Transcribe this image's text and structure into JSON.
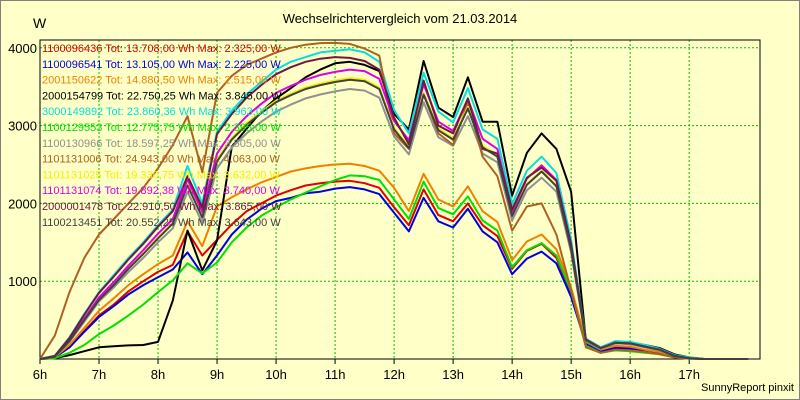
{
  "chart_data": {
    "type": "line",
    "title": "Wechselrichtervergleich vom 21.03.2014",
    "ylabel": "W",
    "credit": "SunnyReport pinxit",
    "ylim": [
      0,
      4100
    ],
    "xlim": [
      6,
      18.2
    ],
    "grid": true,
    "legend_position": "top-left",
    "y_ticks": [
      {
        "value": 1000,
        "label": "1000"
      },
      {
        "value": 2000,
        "label": "2000"
      },
      {
        "value": 3000,
        "label": "3000"
      },
      {
        "value": 4000,
        "label": "4000"
      }
    ],
    "x_ticks": [
      {
        "value": 6,
        "label": "6h"
      },
      {
        "value": 7,
        "label": "7h"
      },
      {
        "value": 8,
        "label": "8h"
      },
      {
        "value": 9,
        "label": "9h"
      },
      {
        "value": 10,
        "label": "10h"
      },
      {
        "value": 11,
        "label": "11h"
      },
      {
        "value": 12,
        "label": "12h"
      },
      {
        "value": 13,
        "label": "13h"
      },
      {
        "value": 14,
        "label": "14h"
      },
      {
        "value": 15,
        "label": "15h"
      },
      {
        "value": 16,
        "label": "16h"
      },
      {
        "value": 17,
        "label": "17h"
      }
    ],
    "x": [
      6.0,
      6.25,
      6.5,
      6.75,
      7.0,
      7.25,
      7.5,
      7.75,
      8.0,
      8.25,
      8.5,
      8.75,
      9.0,
      9.25,
      9.5,
      9.75,
      10.0,
      10.25,
      10.5,
      10.75,
      11.0,
      11.25,
      11.5,
      11.75,
      12.0,
      12.25,
      12.5,
      12.75,
      13.0,
      13.25,
      13.5,
      13.75,
      14.0,
      14.25,
      14.5,
      14.75,
      15.0,
      15.25,
      15.5,
      15.75,
      16.0,
      16.25,
      16.5,
      16.75,
      17.0,
      17.25,
      17.5,
      17.75,
      18.0
    ],
    "series": [
      {
        "name": "1100096436 Tot: 13.708,00 Wh Max: 2.325,00 W",
        "color": "#e00000",
        "values": [
          0,
          20,
          150,
          360,
          560,
          700,
          870,
          1000,
          1120,
          1210,
          1640,
          1330,
          1530,
          1730,
          1900,
          2000,
          2100,
          2170,
          2230,
          2260,
          2280,
          2290,
          2260,
          2200,
          1950,
          1720,
          2180,
          1850,
          1770,
          2000,
          1720,
          1580,
          1160,
          1390,
          1480,
          1300,
          850,
          200,
          110,
          150,
          140,
          110,
          80,
          30,
          10,
          0,
          0,
          0,
          0
        ]
      },
      {
        "name": "1100096541 Tot: 13.105,00 Wh Max: 2.225,00 W",
        "color": "#0000e0",
        "values": [
          0,
          20,
          150,
          350,
          540,
          680,
          830,
          950,
          1050,
          1150,
          1370,
          1090,
          1330,
          1600,
          1790,
          1930,
          2030,
          2070,
          2130,
          2150,
          2190,
          2210,
          2180,
          2120,
          1880,
          1640,
          2070,
          1770,
          1690,
          1930,
          1640,
          1500,
          1090,
          1290,
          1380,
          1230,
          800,
          190,
          100,
          140,
          130,
          100,
          70,
          30,
          10,
          0,
          0,
          0,
          0
        ]
      },
      {
        "name": "2001150622 Tot: 14.880,50 Wh Max: 2.515,00 W",
        "color": "#f08000",
        "values": [
          0,
          25,
          180,
          400,
          620,
          780,
          950,
          1090,
          1220,
          1330,
          1770,
          1450,
          1960,
          2080,
          2180,
          2270,
          2340,
          2410,
          2450,
          2480,
          2500,
          2510,
          2480,
          2420,
          2200,
          1900,
          2380,
          2050,
          1960,
          2220,
          1900,
          1760,
          1270,
          1510,
          1600,
          1410,
          920,
          220,
          120,
          170,
          160,
          120,
          90,
          40,
          10,
          0,
          0,
          0,
          0
        ]
      },
      {
        "name": "2000154799 Tot: 22.750,25 Wh Max: 3.845,00 W",
        "color": "#000000",
        "values": [
          0,
          10,
          50,
          100,
          150,
          165,
          175,
          180,
          220,
          750,
          1650,
          1140,
          1520,
          2730,
          2960,
          3180,
          3350,
          3480,
          3620,
          3720,
          3800,
          3820,
          3780,
          3700,
          3150,
          2950,
          3830,
          3230,
          3110,
          3620,
          3050,
          3050,
          2100,
          2650,
          2900,
          2700,
          2150,
          230,
          130,
          220,
          210,
          180,
          140,
          60,
          20,
          0,
          0,
          0,
          0
        ]
      },
      {
        "name": "3000149892 Tot: 23.860,36 Wh Max: 3.963,00 W",
        "color": "#00e0e0",
        "values": [
          0,
          40,
          280,
          580,
          860,
          1080,
          1300,
          1500,
          1720,
          1920,
          2480,
          2000,
          2920,
          3190,
          3400,
          3560,
          3720,
          3820,
          3880,
          3940,
          3960,
          3980,
          3940,
          3820,
          3200,
          2900,
          3680,
          3180,
          3040,
          3480,
          2950,
          2830,
          1990,
          2420,
          2600,
          2390,
          1530,
          260,
          150,
          230,
          220,
          180,
          130,
          50,
          20,
          0,
          0,
          0,
          0
        ]
      },
      {
        "name": "1100129553 Tot: 12.775,75 Wh Max: 2.395,00 W",
        "color": "#00e000",
        "values": [
          0,
          10,
          80,
          180,
          320,
          430,
          560,
          700,
          860,
          1010,
          1230,
          1100,
          1240,
          1500,
          1690,
          1840,
          1950,
          2050,
          2140,
          2220,
          2300,
          2360,
          2350,
          2300,
          2050,
          1800,
          2280,
          1940,
          1860,
          2090,
          1780,
          1650,
          1180,
          1400,
          1490,
          1330,
          870,
          170,
          80,
          110,
          100,
          80,
          60,
          20,
          5,
          0,
          0,
          0,
          0
        ]
      },
      {
        "name": "1100130966 Tot: 18.597,25 Wh Max: 3.505,00 W",
        "color": "#909090",
        "values": [
          0,
          30,
          220,
          480,
          740,
          920,
          1120,
          1300,
          1500,
          1680,
          2150,
          1750,
          2450,
          2720,
          2900,
          3050,
          3180,
          3270,
          3350,
          3400,
          3440,
          3470,
          3450,
          3360,
          2860,
          2630,
          3300,
          2850,
          2740,
          3120,
          2640,
          2530,
          1780,
          2170,
          2330,
          2150,
          1370,
          230,
          130,
          200,
          190,
          150,
          110,
          40,
          10,
          0,
          0,
          0,
          0
        ]
      },
      {
        "name": "1101131006 Tot: 24.943,00 Wh Max: 4.063,00 W",
        "color": "#b06020",
        "values": [
          0,
          300,
          860,
          1300,
          1600,
          1800,
          2000,
          2200,
          2450,
          2750,
          3120,
          2400,
          3420,
          3640,
          3780,
          3860,
          3940,
          4000,
          4040,
          4060,
          4063,
          4050,
          3990,
          3900,
          2900,
          2700,
          3400,
          2900,
          2750,
          3300,
          2600,
          2350,
          1650,
          1960,
          2000,
          1600,
          880,
          150,
          80,
          120,
          110,
          90,
          60,
          20,
          5,
          0,
          0,
          0,
          0
        ]
      },
      {
        "name": "1101131025 Tot: 19.330,75 Wh Max: 3.632,00 W",
        "color": "#f0f000",
        "values": [
          0,
          30,
          230,
          500,
          770,
          960,
          1170,
          1360,
          1560,
          1750,
          2250,
          1830,
          2560,
          2840,
          3030,
          3180,
          3320,
          3410,
          3490,
          3540,
          3580,
          3610,
          3590,
          3490,
          2970,
          2730,
          3420,
          2960,
          2840,
          3240,
          2740,
          2620,
          1850,
          2250,
          2420,
          2230,
          1420,
          240,
          140,
          210,
          200,
          160,
          120,
          40,
          10,
          0,
          0,
          0,
          0
        ]
      },
      {
        "name": "1101131074 Tot: 19.892,38 Wh Max: 3.740,00 W",
        "color": "#e000e0",
        "values": [
          0,
          30,
          240,
          520,
          790,
          990,
          1200,
          1400,
          1610,
          1800,
          2310,
          1890,
          2640,
          2920,
          3120,
          3280,
          3420,
          3510,
          3590,
          3650,
          3690,
          3720,
          3700,
          3600,
          3060,
          2810,
          3530,
          3050,
          2930,
          3340,
          2830,
          2700,
          1900,
          2320,
          2490,
          2300,
          1470,
          250,
          140,
          210,
          200,
          160,
          120,
          40,
          10,
          0,
          0,
          0,
          0
        ]
      },
      {
        "name": "2000001478 Tot: 22.910,50 Wh Max: 3.865,00 W",
        "color": "#701840",
        "values": [
          0,
          40,
          270,
          570,
          850,
          1060,
          1280,
          1480,
          1700,
          1900,
          2350,
          1950,
          2890,
          3150,
          3360,
          3520,
          3660,
          3750,
          3820,
          3860,
          3880,
          3870,
          3830,
          3720,
          3100,
          2760,
          3580,
          3000,
          2900,
          3350,
          2700,
          2640,
          1920,
          2330,
          2460,
          2290,
          1470,
          250,
          140,
          210,
          200,
          160,
          120,
          40,
          10,
          0,
          0,
          0,
          0
        ]
      },
      {
        "name": "1100213451 Tot: 20.552,25 Wh Max: 3.643,00 W",
        "color": "#404040",
        "values": [
          0,
          30,
          230,
          500,
          760,
          950,
          1160,
          1350,
          1550,
          1740,
          2230,
          1820,
          2540,
          2820,
          3010,
          3160,
          3300,
          3390,
          3470,
          3520,
          3560,
          3590,
          3570,
          3470,
          2950,
          2710,
          3400,
          2940,
          2820,
          3220,
          2720,
          2600,
          1840,
          2240,
          2410,
          2220,
          1410,
          240,
          140,
          210,
          200,
          160,
          120,
          40,
          10,
          0,
          0,
          0,
          0
        ]
      }
    ]
  }
}
